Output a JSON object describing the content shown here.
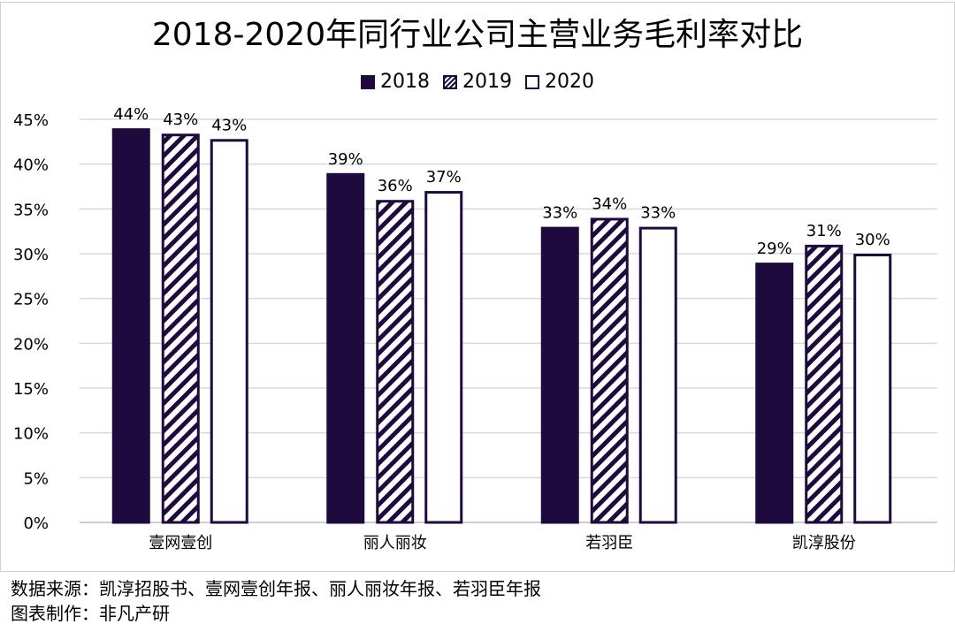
{
  "chart_data": {
    "type": "bar",
    "title": "2018-2020年同行业公司主营业务毛利率对比",
    "categories": [
      "壹网壹创",
      "丽人丽妆",
      "若羽臣",
      "凯淳股份"
    ],
    "series": [
      {
        "name": "2018",
        "values": [
          44,
          39,
          33,
          29
        ],
        "labels": [
          "44%",
          "39%",
          "33%",
          "29%"
        ],
        "style": "solid",
        "color": "#1e0a3c"
      },
      {
        "name": "2019",
        "values": [
          43.4,
          36,
          34,
          31
        ],
        "labels": [
          "43%",
          "36%",
          "34%",
          "31%"
        ],
        "style": "hatched",
        "color": "#1e0a3c"
      },
      {
        "name": "2020",
        "values": [
          42.8,
          37,
          33,
          30
        ],
        "labels": [
          "43%",
          "37%",
          "33%",
          "30%"
        ],
        "style": "outline",
        "color": "#1e0a3c"
      }
    ],
    "yticks": [
      "0%",
      "5%",
      "10%",
      "15%",
      "20%",
      "25%",
      "30%",
      "35%",
      "40%",
      "45%"
    ],
    "ylim": [
      0,
      45
    ],
    "grid": true,
    "legend": "top"
  },
  "footer": {
    "source": "数据来源：凯淳招股书、壹网壹创年报、丽人丽妆年报、若羽臣年报",
    "maker": "图表制作：非凡产研"
  }
}
